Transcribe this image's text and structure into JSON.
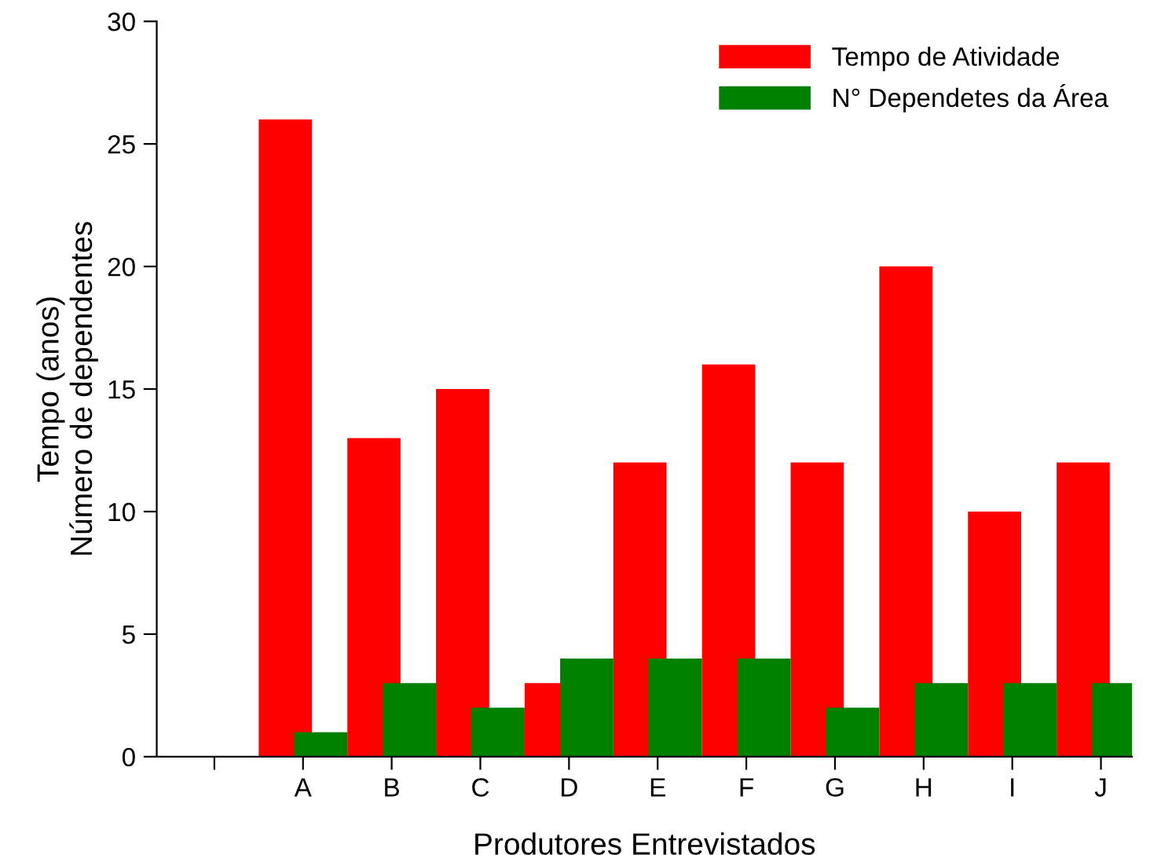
{
  "chart_data": {
    "type": "bar",
    "xlabel": "Produtores Entrevistados",
    "ylabel": "Tempo (anos)\nNúmero de dependentes",
    "categories": [
      null,
      "A",
      "B",
      "C",
      "D",
      "E",
      "F",
      "G",
      "H",
      "I",
      "J"
    ],
    "series": [
      {
        "name": "Tempo de Atividade",
        "color": "#ff0000",
        "values": [
          null,
          26,
          13,
          15,
          3,
          12,
          16,
          12,
          20,
          10,
          12
        ]
      },
      {
        "name": "N° Dependetes da Área",
        "color": "#008000",
        "values": [
          null,
          1,
          3,
          2,
          4,
          4,
          4,
          2,
          3,
          3,
          3
        ]
      }
    ],
    "ylim": [
      0,
      30
    ],
    "yticks": [
      0,
      5,
      10,
      15,
      20,
      25,
      30
    ],
    "grid": false,
    "legend": "top right"
  }
}
